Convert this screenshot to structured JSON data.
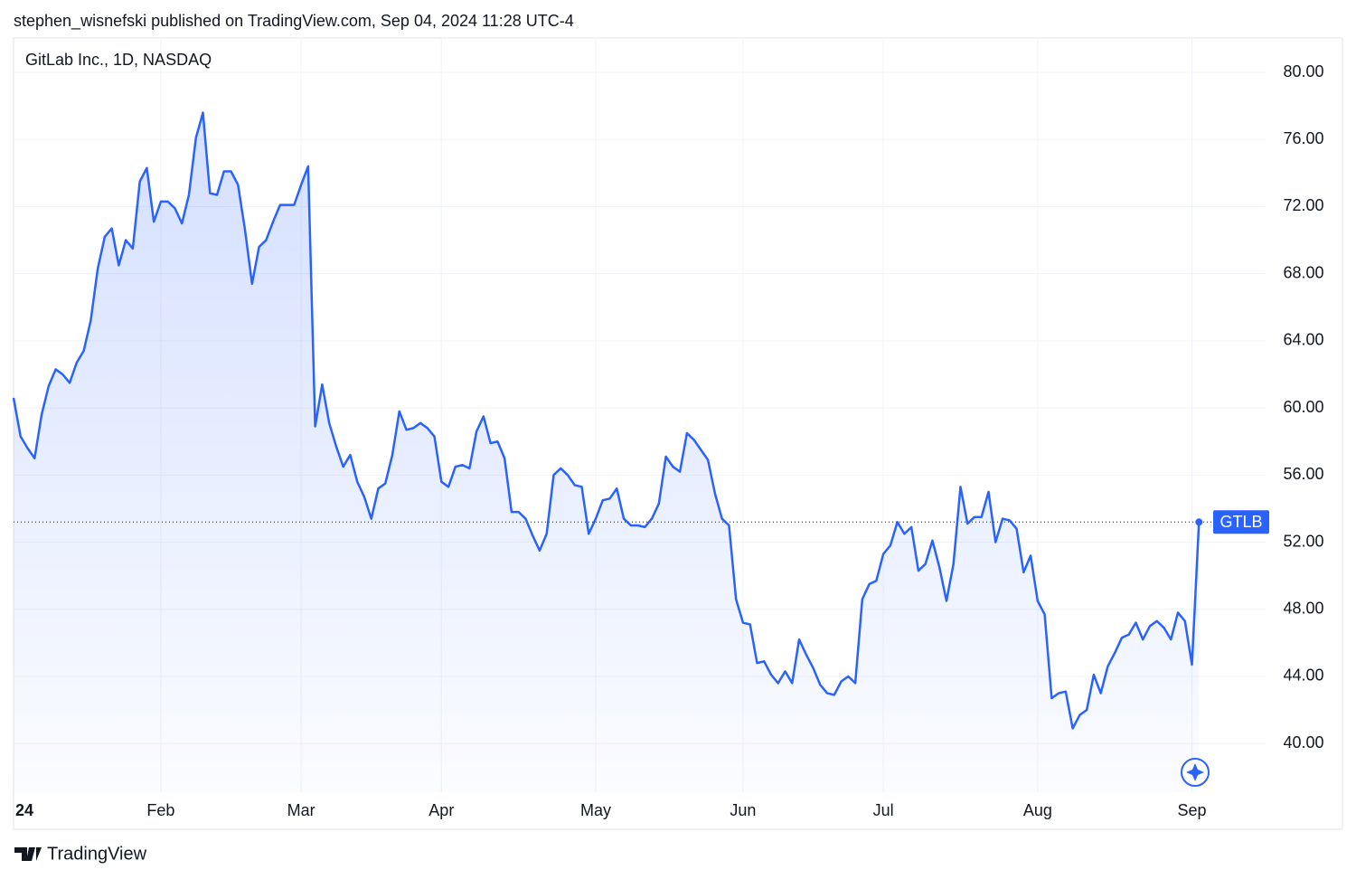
{
  "header": {
    "text": "stephen_wisnefski published on TradingView.com, Sep 04, 2024 11:28 UTC-4"
  },
  "footer": {
    "brand": "TradingView"
  },
  "chart_data": {
    "type": "area",
    "title": "GitLab Inc., 1D, NASDAQ",
    "grid": true,
    "xlim": [
      0,
      178.5
    ],
    "ylim": [
      37.1,
      82.05
    ],
    "xticks": [
      {
        "value": 0,
        "label": "24"
      },
      {
        "value": 21,
        "label": "Feb"
      },
      {
        "value": 41,
        "label": "Mar"
      },
      {
        "value": 61,
        "label": "Apr"
      },
      {
        "value": 83,
        "label": "May"
      },
      {
        "value": 104,
        "label": "Jun"
      },
      {
        "value": 124,
        "label": "Jul"
      },
      {
        "value": 146,
        "label": "Aug"
      },
      {
        "value": 168,
        "label": "Sep"
      }
    ],
    "yticks": [
      {
        "value": 40,
        "label": "40.00"
      },
      {
        "value": 44,
        "label": "44.00"
      },
      {
        "value": 48,
        "label": "48.00"
      },
      {
        "value": 52,
        "label": "52.00"
      },
      {
        "value": 56,
        "label": "56.00"
      },
      {
        "value": 60,
        "label": "60.00"
      },
      {
        "value": 64,
        "label": "64.00"
      },
      {
        "value": 68,
        "label": "68.00"
      },
      {
        "value": 72,
        "label": "72.00"
      },
      {
        "value": 76,
        "label": "76.00"
      },
      {
        "value": 80,
        "label": "80.00"
      }
    ],
    "x": [
      0,
      1,
      2,
      3,
      4,
      5,
      6,
      7,
      8,
      9,
      10,
      11,
      12,
      13,
      14,
      15,
      16,
      17,
      18,
      19,
      20,
      21,
      22,
      23,
      24,
      25,
      26,
      27,
      28,
      29,
      30,
      31,
      32,
      33,
      34,
      35,
      36,
      37,
      38,
      39,
      40,
      41,
      42,
      43,
      44,
      45,
      46,
      47,
      48,
      49,
      50,
      51,
      52,
      53,
      54,
      55,
      56,
      57,
      58,
      59,
      60,
      61,
      62,
      63,
      64,
      65,
      66,
      67,
      68,
      69,
      70,
      71,
      72,
      73,
      74,
      75,
      76,
      77,
      78,
      79,
      80,
      81,
      82,
      83,
      84,
      85,
      86,
      87,
      88,
      89,
      90,
      91,
      92,
      93,
      94,
      95,
      96,
      97,
      98,
      99,
      100,
      101,
      102,
      103,
      104,
      105,
      106,
      107,
      108,
      109,
      110,
      111,
      112,
      113,
      114,
      115,
      116,
      117,
      118,
      119,
      120,
      121,
      122,
      123,
      124,
      125,
      126,
      127,
      128,
      129,
      130,
      131,
      132,
      133,
      134,
      135,
      136,
      137,
      138,
      139,
      140,
      141,
      142,
      143,
      144,
      145,
      146,
      147,
      148,
      149,
      150,
      151,
      152,
      153,
      154,
      155,
      156,
      157,
      158,
      159,
      160,
      161,
      162,
      163,
      164,
      165,
      166,
      167,
      168,
      169
    ],
    "series": [
      {
        "name": "GTLB",
        "color": "#2962ff",
        "values": [
          60.6,
          58.3,
          57.6,
          57.0,
          59.6,
          61.3,
          62.3,
          62.0,
          61.5,
          62.7,
          63.4,
          65.2,
          68.3,
          70.2,
          70.7,
          68.5,
          70.0,
          69.5,
          73.5,
          74.3,
          71.1,
          72.3,
          72.3,
          71.9,
          71.0,
          72.7,
          76.1,
          77.6,
          72.8,
          72.7,
          74.1,
          74.1,
          73.3,
          70.6,
          67.4,
          69.6,
          70.0,
          71.1,
          72.1,
          72.1,
          72.1,
          73.3,
          74.4,
          58.9,
          61.4,
          59.1,
          57.7,
          56.5,
          57.2,
          55.6,
          54.7,
          53.4,
          55.2,
          55.5,
          57.2,
          59.8,
          58.7,
          58.8,
          59.1,
          58.8,
          58.3,
          55.6,
          55.3,
          56.5,
          56.6,
          56.4,
          58.6,
          59.5,
          57.9,
          58.0,
          57.0,
          53.8,
          53.8,
          53.4,
          52.4,
          51.5,
          52.5,
          56.0,
          56.4,
          56.0,
          55.4,
          55.3,
          52.5,
          53.4,
          54.5,
          54.6,
          55.2,
          53.4,
          53.0,
          53.0,
          52.9,
          53.4,
          54.3,
          57.1,
          56.5,
          56.2,
          58.5,
          58.1,
          57.5,
          56.9,
          54.9,
          53.4,
          53.0,
          48.6,
          47.2,
          47.1,
          44.8,
          44.9,
          44.1,
          43.6,
          44.3,
          43.6,
          46.2,
          45.3,
          44.5,
          43.5,
          43.0,
          42.9,
          43.7,
          44.0,
          43.6,
          48.6,
          49.5,
          49.7,
          51.3,
          51.8,
          53.2,
          52.5,
          52.9,
          50.3,
          50.7,
          52.1,
          50.5,
          48.5,
          50.7,
          55.3,
          53.1,
          53.5,
          53.5,
          55.0,
          52.0,
          53.4,
          53.3,
          52.8,
          50.2,
          51.2,
          48.5,
          47.7,
          42.7,
          43.0,
          43.1,
          40.9,
          41.7,
          42.0,
          44.1,
          43.0,
          44.6,
          45.4,
          46.3,
          46.5,
          47.2,
          46.2,
          47.0,
          47.3,
          46.9,
          46.2,
          47.8,
          47.3,
          44.7,
          53.2
        ]
      }
    ]
  }
}
